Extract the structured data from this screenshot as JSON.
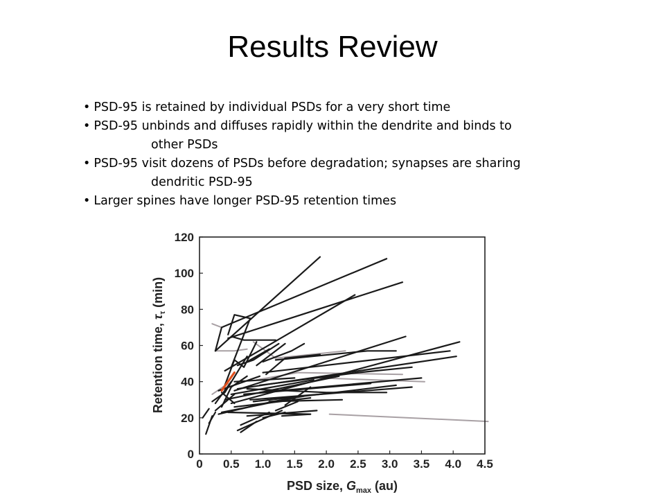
{
  "slide": {
    "title": "Results Review",
    "bullets": [
      {
        "line1": "PSD-95 is retained by individual PSDs for a very short time",
        "line2": ""
      },
      {
        "line1": "PSD-95 unbinds and diffuses rapidly within the dendrite and binds to",
        "line2": "other PSDs"
      },
      {
        "line1": "PSD-95 visit dozens of PSDs before degradation; synapses are sharing",
        "line2": "dendritic PSD-95"
      },
      {
        "line1": "Larger spines have longer PSD-95 retention times",
        "line2": ""
      }
    ],
    "bullet_glyph": "•"
  },
  "chart_data": {
    "type": "line",
    "xlabel": "PSD size, G_max (au)",
    "xlabel_parts": {
      "prefix": "PSD size, ",
      "var": "G",
      "sub": "max",
      "suffix": " (au)"
    },
    "ylabel": "Retention time, τ_τ (min)",
    "ylabel_parts": {
      "prefix": "Retention time, ",
      "var": "τ",
      "sub": "τ",
      "suffix": " (min)"
    },
    "xlim": [
      0,
      4.5
    ],
    "ylim": [
      0,
      120
    ],
    "xticks": [
      0,
      0.5,
      1.0,
      1.5,
      2.0,
      2.5,
      3.0,
      3.5,
      4.0,
      4.5
    ],
    "xtick_labels": [
      "0",
      "0.5",
      "1.0",
      "1.5",
      "2.0",
      "2.5",
      "3.0",
      "3.5",
      "4.0",
      "4.5"
    ],
    "yticks": [
      0,
      20,
      40,
      60,
      80,
      100,
      120
    ],
    "ytick_labels": [
      "0",
      "20",
      "40",
      "60",
      "80",
      "100",
      "120"
    ],
    "grid": false,
    "colors": {
      "main": "#1a1a1a",
      "grey": "#a8a0a4",
      "highlight": "#e0501e"
    },
    "series": [
      {
        "color": "main",
        "x": [
          0.25,
          1.9
        ],
        "y": [
          57,
          109
        ]
      },
      {
        "color": "main",
        "x": [
          0.25,
          0.35,
          2.95
        ],
        "y": [
          57,
          70,
          108
        ]
      },
      {
        "color": "main",
        "x": [
          0.45,
          3.2
        ],
        "y": [
          64,
          95
        ]
      },
      {
        "color": "main",
        "x": [
          0.4,
          2.45
        ],
        "y": [
          46,
          88
        ]
      },
      {
        "color": "main",
        "x": [
          0.45,
          0.55,
          0.8
        ],
        "y": [
          66,
          77,
          75
        ]
      },
      {
        "color": "main",
        "x": [
          0.5,
          0.8
        ],
        "y": [
          48,
          75
        ]
      },
      {
        "color": "main",
        "x": [
          0.5,
          0.7,
          1.2
        ],
        "y": [
          65,
          63,
          63
        ]
      },
      {
        "color": "main",
        "x": [
          0.4,
          0.55,
          0.7,
          0.9
        ],
        "y": [
          38,
          52,
          48,
          62
        ]
      },
      {
        "color": "main",
        "x": [
          0.35,
          0.5,
          0.75
        ],
        "y": [
          26,
          37,
          43
        ]
      },
      {
        "color": "main",
        "x": [
          0.6,
          0.85,
          1.25
        ],
        "y": [
          49,
          52,
          61
        ]
      },
      {
        "color": "main",
        "x": [
          0.9,
          1.35
        ],
        "y": [
          49,
          61
        ]
      },
      {
        "color": "main",
        "x": [
          0.2,
          0.4,
          0.75
        ],
        "y": [
          29,
          34,
          54
        ]
      },
      {
        "color": "main",
        "x": [
          0.75,
          1.1
        ],
        "y": [
          51,
          58
        ]
      },
      {
        "color": "main",
        "x": [
          1.0,
          1.45,
          1.65
        ],
        "y": [
          51,
          57,
          61
        ]
      },
      {
        "color": "main",
        "x": [
          1.05,
          1.35,
          1.9
        ],
        "y": [
          44,
          53,
          55
        ]
      },
      {
        "color": "main",
        "x": [
          1.2,
          2.65,
          3.1
        ],
        "y": [
          52,
          57,
          57
        ]
      },
      {
        "color": "main",
        "x": [
          0.55,
          3.25
        ],
        "y": [
          35,
          65
        ]
      },
      {
        "color": "main",
        "x": [
          0.5,
          4.1
        ],
        "y": [
          28,
          62
        ]
      },
      {
        "color": "main",
        "x": [
          0.6,
          4.05
        ],
        "y": [
          36,
          54
        ]
      },
      {
        "color": "main",
        "x": [
          1.0,
          3.95
        ],
        "y": [
          45,
          57
        ]
      },
      {
        "color": "main",
        "x": [
          0.95,
          2.5,
          3.35
        ],
        "y": [
          38,
          45,
          48
        ]
      },
      {
        "color": "main",
        "x": [
          0.95,
          3.5
        ],
        "y": [
          34,
          42
        ]
      },
      {
        "color": "main",
        "x": [
          0.85,
          1.9,
          3.1
        ],
        "y": [
          29,
          33,
          38
        ]
      },
      {
        "color": "main",
        "x": [
          0.8,
          3.35
        ],
        "y": [
          30,
          37
        ]
      },
      {
        "color": "main",
        "x": [
          0.75,
          2.0,
          2.95
        ],
        "y": [
          36,
          34,
          34
        ]
      },
      {
        "color": "main",
        "x": [
          1.1,
          2.25
        ],
        "y": [
          29,
          30
        ]
      },
      {
        "color": "main",
        "x": [
          0.7,
          2.7
        ],
        "y": [
          33,
          39
        ]
      },
      {
        "color": "main",
        "x": [
          0.35,
          1.5
        ],
        "y": [
          23,
          31
        ]
      },
      {
        "color": "main",
        "x": [
          0.3,
          1.15,
          1.65
        ],
        "y": [
          22,
          29,
          32
        ]
      },
      {
        "color": "main",
        "x": [
          0.25,
          0.55
        ],
        "y": [
          24,
          33
        ]
      },
      {
        "color": "main",
        "x": [
          0.4,
          2.2
        ],
        "y": [
          30,
          43
        ]
      },
      {
        "color": "main",
        "x": [
          0.55,
          1.75
        ],
        "y": [
          26,
          31
        ]
      },
      {
        "color": "main",
        "x": [
          0.5,
          1.8
        ],
        "y": [
          33,
          41
        ]
      },
      {
        "color": "main",
        "x": [
          0.3,
          0.95
        ],
        "y": [
          35,
          43
        ]
      },
      {
        "color": "main",
        "x": [
          0.55,
          1.5
        ],
        "y": [
          40,
          42
        ]
      },
      {
        "color": "main",
        "x": [
          0.75,
          1.85
        ],
        "y": [
          21,
          24
        ]
      },
      {
        "color": "main",
        "x": [
          0.45,
          1.75
        ],
        "y": [
          23,
          22
        ]
      },
      {
        "color": "main",
        "x": [
          1.3,
          1.75
        ],
        "y": [
          21,
          22
        ]
      },
      {
        "color": "main",
        "x": [
          0.35,
          0.55
        ],
        "y": [
          34,
          28
        ]
      },
      {
        "color": "main",
        "x": [
          0.1,
          0.2
        ],
        "y": [
          11,
          21
        ]
      },
      {
        "color": "main",
        "x": [
          0.05,
          0.15
        ],
        "y": [
          20,
          25
        ]
      },
      {
        "color": "main",
        "x": [
          0.15,
          0.25
        ],
        "y": [
          17,
          23
        ]
      },
      {
        "color": "main",
        "x": [
          0.25,
          0.5
        ],
        "y": [
          28,
          40
        ]
      },
      {
        "color": "main",
        "x": [
          0.6,
          1.3
        ],
        "y": [
          13,
          24
        ]
      },
      {
        "color": "main",
        "x": [
          0.65,
          0.9
        ],
        "y": [
          12,
          18
        ]
      },
      {
        "color": "main",
        "x": [
          0.65,
          1.1
        ],
        "y": [
          16,
          23
        ]
      },
      {
        "color": "main",
        "x": [
          1.0,
          1.35
        ],
        "y": [
          20,
          23
        ]
      },
      {
        "color": "main",
        "x": [
          1.2,
          1.55
        ],
        "y": [
          24,
          29
        ]
      },
      {
        "color": "main",
        "x": [
          1.35,
          1.75
        ],
        "y": [
          27,
          37
        ]
      },
      {
        "color": "grey",
        "x": [
          0.25,
          0.55,
          0.75
        ],
        "y": [
          57,
          57,
          58
        ]
      },
      {
        "color": "grey",
        "x": [
          0.85,
          1.2,
          2.3
        ],
        "y": [
          62,
          53,
          57
        ]
      },
      {
        "color": "grey",
        "x": [
          0.9,
          1.55,
          3.2
        ],
        "y": [
          41,
          45,
          44
        ]
      },
      {
        "color": "grey",
        "x": [
          1.9,
          3.55
        ],
        "y": [
          42,
          40
        ]
      },
      {
        "color": "grey",
        "x": [
          2.05,
          4.55
        ],
        "y": [
          22,
          18
        ]
      },
      {
        "color": "grey",
        "x": [
          0.2,
          0.45
        ],
        "y": [
          33,
          39
        ]
      },
      {
        "color": "grey",
        "x": [
          0.2,
          0.35
        ],
        "y": [
          72,
          70
        ]
      },
      {
        "color": "highlight",
        "x": [
          0.35,
          0.55
        ],
        "y": [
          35,
          45
        ]
      }
    ]
  }
}
